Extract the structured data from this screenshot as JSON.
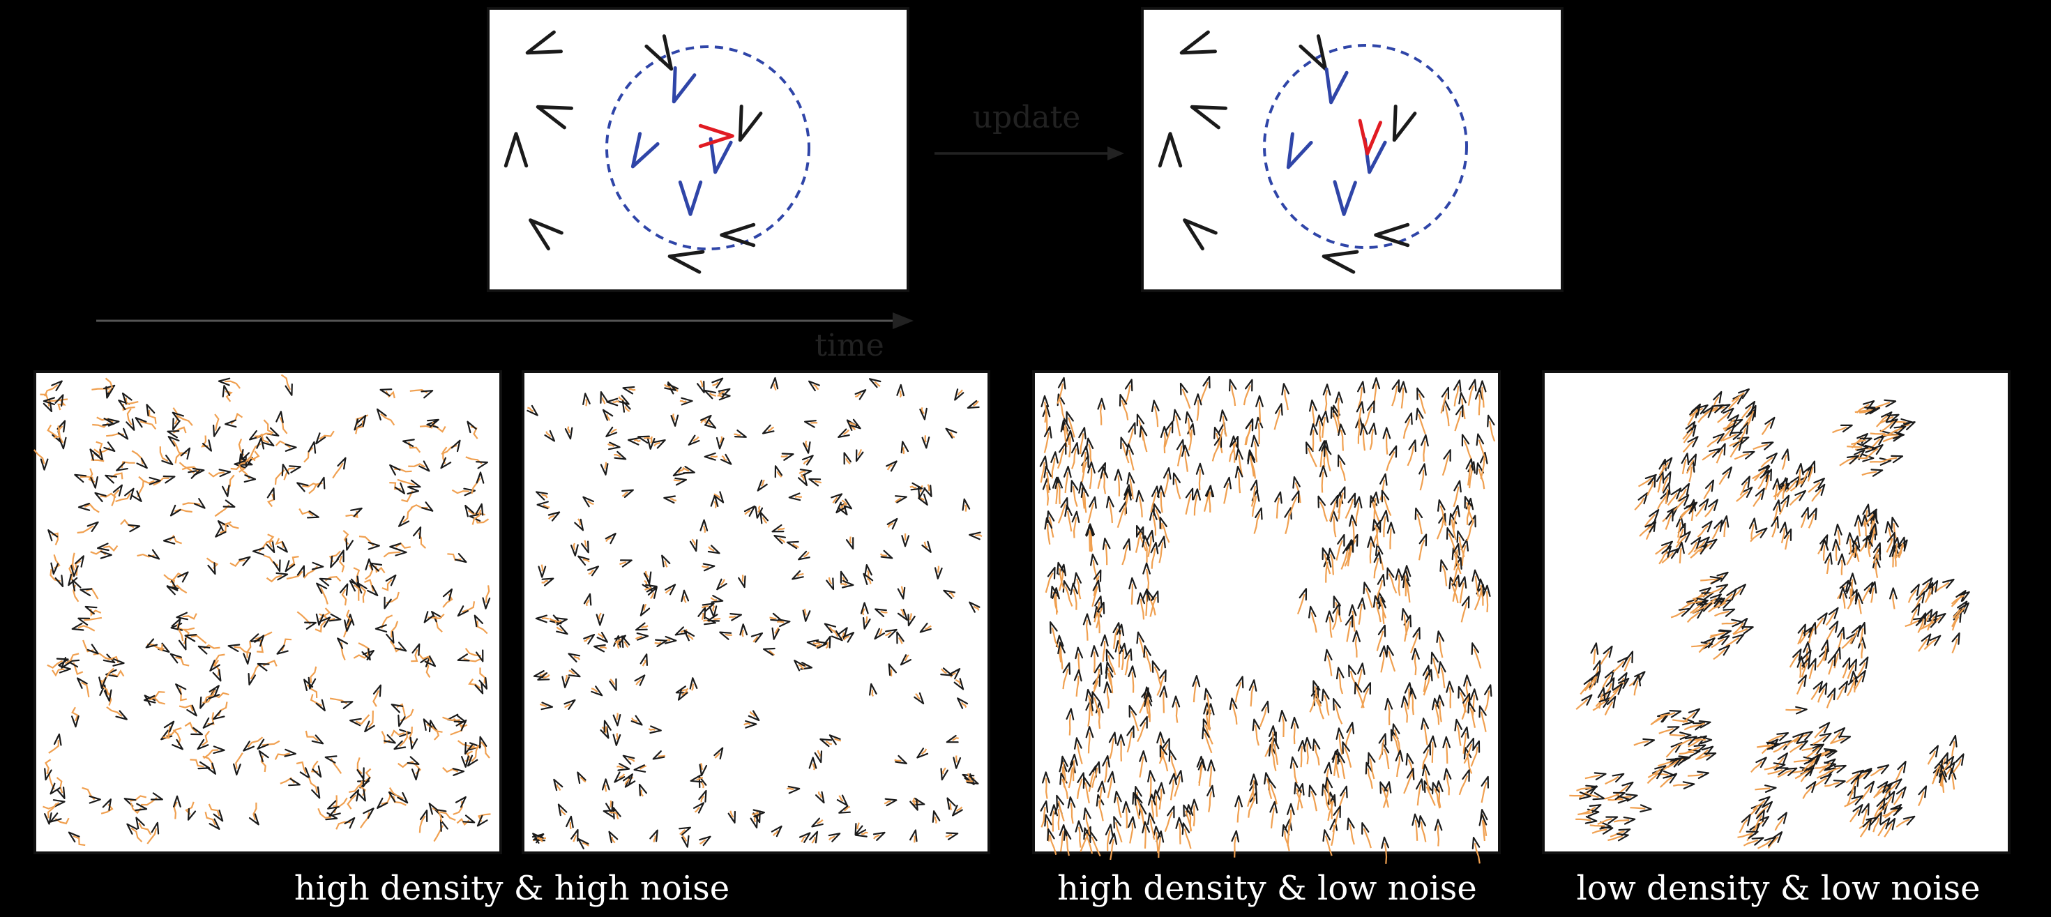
{
  "labels": {
    "update": "update",
    "time": "time",
    "panel_a": "high density & high noise",
    "panel_b": "high density & low noise",
    "panel_c": "low density & low noise"
  },
  "colors": {
    "background": "#000000",
    "panel_fill": "#ffffff",
    "agent": "#1a1a1a",
    "neighbor": "#2f45a8",
    "focal": "#e11b22",
    "trail": "#f0a050",
    "arrow": "#222222"
  },
  "schematic": {
    "description_free": true,
    "focal_heading_before": "right",
    "focal_heading_after": "down"
  },
  "icons": {
    "agent": "chevron-agent-icon",
    "arrow": "arrow-right-icon"
  }
}
